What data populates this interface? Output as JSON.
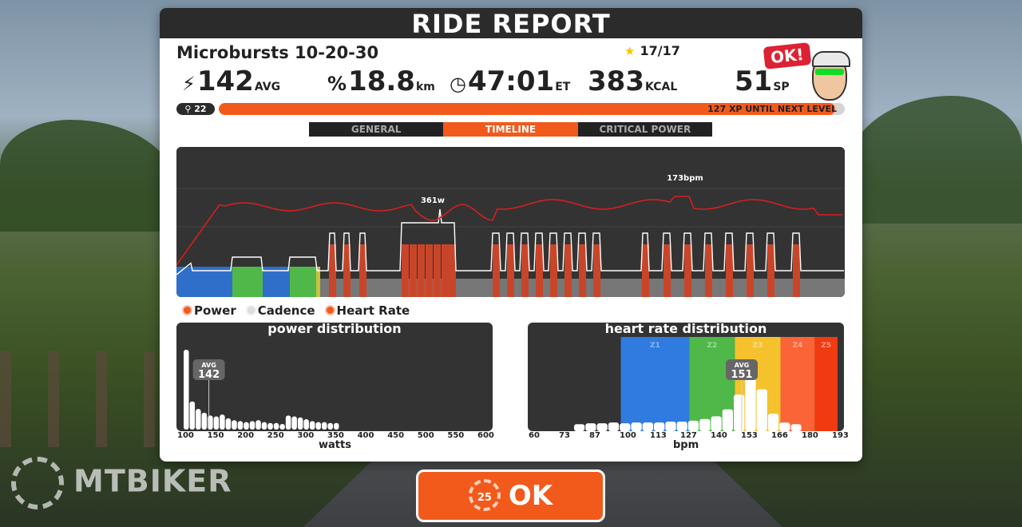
{
  "report": {
    "title": "RIDE REPORT",
    "workout_name": "Microbursts 10-20-30",
    "stars": "17/17"
  },
  "stats": [
    {
      "icon": "power-bolt-icon",
      "glyph": "⚡",
      "value": "142",
      "unit": "AVG"
    },
    {
      "icon": "distance-icon",
      "glyph": "%",
      "value": "18.8",
      "unit": "km"
    },
    {
      "icon": "clock-icon",
      "glyph": "◷",
      "value": "47:01",
      "unit": "ET"
    },
    {
      "icon": "",
      "glyph": "",
      "value": "383",
      "unit": "KCAL"
    },
    {
      "icon": "",
      "glyph": "",
      "value": "51",
      "unit": "SP"
    }
  ],
  "avatar": {
    "bubble": "OK!"
  },
  "level": {
    "badge": "22",
    "progress": 0.985,
    "xp_text": "127 XP UNTIL NEXT LEVEL"
  },
  "tabs": [
    {
      "label": "GENERAL",
      "active": false
    },
    {
      "label": "TIMELINE",
      "active": true
    },
    {
      "label": "CRITICAL POWER",
      "active": false
    }
  ],
  "timeline": {
    "power_peak_label": "361w",
    "hr_peak_label": "173bpm"
  },
  "legend": {
    "power": "Power",
    "cadence": "Cadence",
    "heart_rate": "Heart Rate"
  },
  "power_distribution": {
    "title": "power distribution",
    "avg_label": "AVG",
    "avg_value": "142",
    "ticks": [
      "100",
      "150",
      "200",
      "250",
      "300",
      "350",
      "400",
      "450",
      "500",
      "550",
      "600"
    ],
    "xlabel": "watts"
  },
  "hr_distribution": {
    "title": "heart rate distribution",
    "avg_label": "AVG",
    "avg_value": "151",
    "zones": [
      "Z1",
      "Z2",
      "Z3",
      "Z4",
      "Z5"
    ],
    "zone_colors": [
      "#2f7be0",
      "#4fb848",
      "#f5c22e",
      "#fa6436",
      "#f03a12"
    ],
    "ticks": [
      "60",
      "73",
      "87",
      "100",
      "113",
      "127",
      "140",
      "153",
      "166",
      "180",
      "193"
    ],
    "xlabel": "bpm"
  },
  "ok_button": {
    "label": "OK",
    "countdown": "25"
  },
  "watermark": "MTBIKER",
  "chart_data": [
    {
      "type": "area",
      "title": "power distribution",
      "xlabel": "watts",
      "x": [
        100,
        110,
        120,
        130,
        140,
        150,
        160,
        170,
        180,
        190,
        200,
        210,
        220,
        230,
        240,
        250,
        260,
        270,
        280,
        290,
        300,
        310,
        320,
        330,
        340,
        350
      ],
      "values": [
        85,
        30,
        22,
        18,
        15,
        14,
        16,
        12,
        10,
        9,
        8,
        9,
        10,
        8,
        7,
        7,
        6,
        15,
        14,
        13,
        11,
        9,
        8,
        8,
        7,
        7
      ],
      "xlim": [
        100,
        600
      ]
    },
    {
      "type": "area",
      "title": "heart rate distribution",
      "xlabel": "bpm",
      "x": [
        80,
        85,
        90,
        95,
        100,
        105,
        110,
        115,
        120,
        125,
        130,
        135,
        140,
        145,
        150,
        155,
        160,
        165,
        170,
        175
      ],
      "values": [
        8,
        9,
        9,
        10,
        9,
        10,
        10,
        10,
        11,
        11,
        12,
        14,
        17,
        25,
        42,
        75,
        48,
        20,
        10,
        8
      ],
      "xlim": [
        60,
        193
      ]
    }
  ]
}
